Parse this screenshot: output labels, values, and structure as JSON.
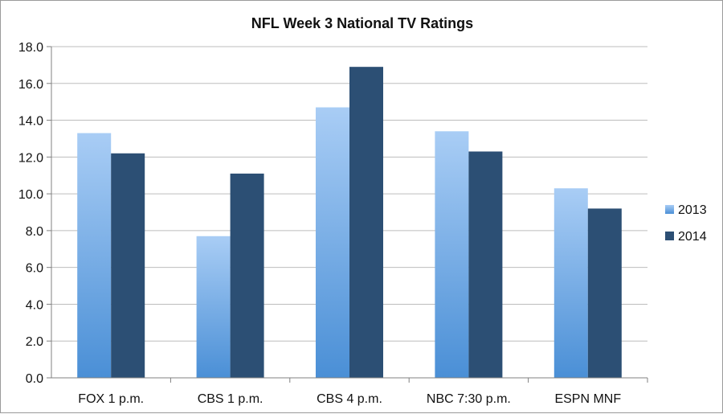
{
  "chart_data": {
    "type": "bar",
    "title": "NFL Week 3 National TV Ratings",
    "xlabel": "",
    "ylabel": "",
    "categories": [
      "FOX 1 p.m.",
      "CBS 1 p.m.",
      "CBS 4 p.m.",
      "NBC 7:30 p.m.",
      "ESPN MNF"
    ],
    "series": [
      {
        "name": "2013",
        "values": [
          13.3,
          7.7,
          14.7,
          13.4,
          10.3
        ]
      },
      {
        "name": "2014",
        "values": [
          12.2,
          11.1,
          16.9,
          12.3,
          9.2
        ]
      }
    ],
    "ylim": [
      0,
      18
    ],
    "yticks": [
      "0.0",
      "2.0",
      "4.0",
      "6.0",
      "8.0",
      "10.0",
      "12.0",
      "14.0",
      "16.0",
      "18.0"
    ],
    "grid": true,
    "legend_position": "right",
    "colors": {
      "2013_top": "#a9cdf5",
      "2013_bottom": "#4a8fd6",
      "2014": "#2c4f74",
      "grid": "#bdbdbd",
      "axis": "#808080"
    }
  }
}
